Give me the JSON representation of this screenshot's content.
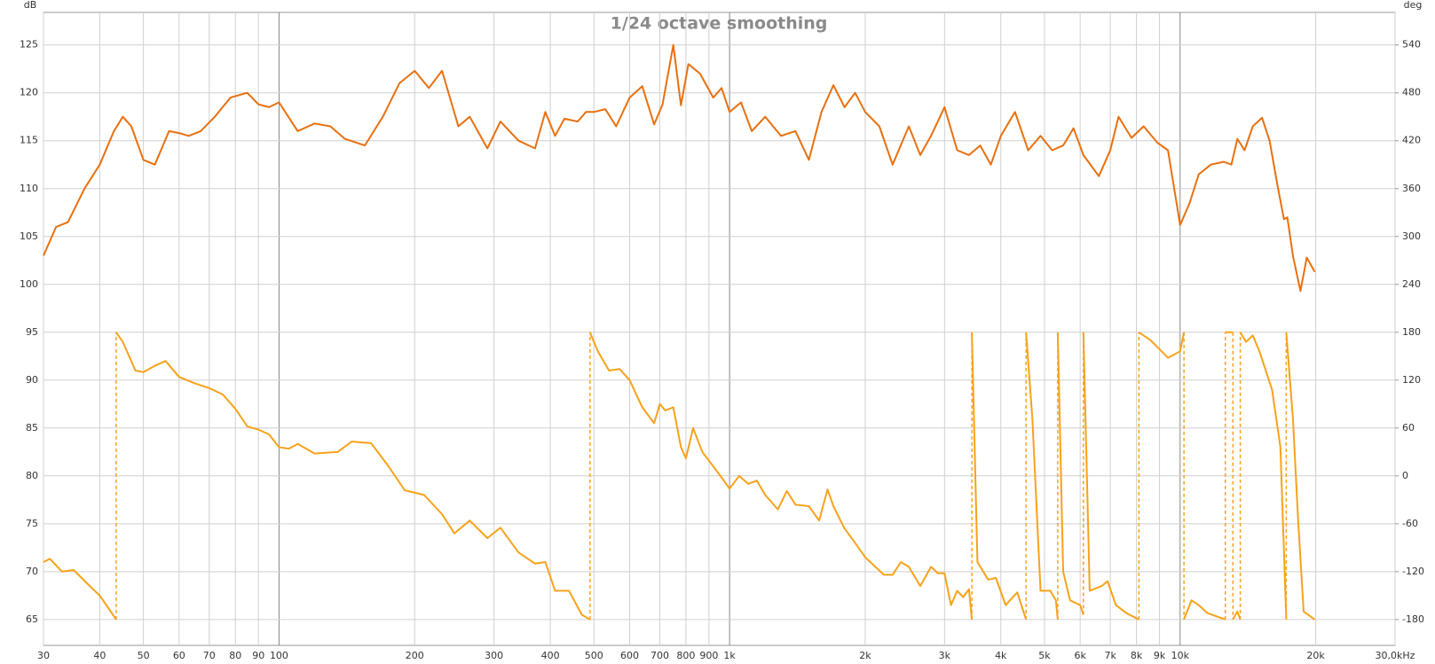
{
  "chart_data": {
    "type": "line",
    "title": "1/24 octave smoothing",
    "ylabel": "dB",
    "y2label": "deg",
    "xscale": "log",
    "grid": true,
    "xlim": [
      30,
      30000
    ],
    "xticks": [
      30,
      40,
      50,
      60,
      70,
      80,
      90,
      100,
      200,
      300,
      400,
      500,
      600,
      700,
      800,
      900,
      {
        "value": 1000,
        "label": "1k"
      },
      {
        "value": 2000,
        "label": "2k"
      },
      {
        "value": 3000,
        "label": "3k"
      },
      {
        "value": 4000,
        "label": "4k"
      },
      {
        "value": 5000,
        "label": "5k"
      },
      {
        "value": 6000,
        "label": "6k"
      },
      {
        "value": 7000,
        "label": "7k"
      },
      {
        "value": 8000,
        "label": "8k"
      },
      {
        "value": 9000,
        "label": "9k"
      },
      {
        "value": 10000,
        "label": "10k"
      },
      {
        "value": 20000,
        "label": "20k"
      },
      {
        "value": 30000,
        "label": "30,0kHz"
      }
    ],
    "ylim": [
      62.3,
      128.4
    ],
    "yticks": [
      65,
      70,
      75,
      80,
      85,
      90,
      95,
      100,
      105,
      110,
      115,
      120,
      125
    ],
    "y2lim": [
      -212.4,
      580.8
    ],
    "y2ticks": [
      -180,
      -120,
      -60,
      0,
      60,
      120,
      180,
      240,
      300,
      360,
      420,
      480,
      540
    ],
    "series": [
      {
        "color": "#e8700f",
        "x": [
          30,
          32,
          34,
          37,
          40,
          43,
          45,
          47,
          50,
          53,
          57,
          60,
          63,
          67,
          72,
          78,
          85,
          90,
          95,
          100,
          110,
          120,
          130,
          140,
          155,
          170,
          185,
          200,
          215,
          230,
          250,
          265,
          290,
          310,
          340,
          370,
          390,
          410,
          430,
          460,
          480,
          500,
          530,
          560,
          600,
          640,
          680,
          710,
          750,
          780,
          810,
          860,
          920,
          960,
          1000,
          1060,
          1120,
          1200,
          1300,
          1400,
          1500,
          1600,
          1700,
          1800,
          1900,
          2000,
          2150,
          2300,
          2500,
          2650,
          2800,
          3000,
          3200,
          3400,
          3600,
          3800,
          4000,
          4300,
          4600,
          4900,
          5200,
          5500,
          5800,
          6100,
          6600,
          7000,
          7300,
          7800,
          8300,
          8900,
          9400,
          10000,
          10500,
          11000,
          11700,
          12500,
          13000,
          13400,
          13900,
          14500,
          15200,
          15800,
          16500,
          17000,
          17300,
          17800,
          18500,
          19100,
          19900
        ],
        "values": [
          103,
          106,
          106.5,
          110,
          112.5,
          116,
          117.5,
          116.5,
          113,
          112.5,
          116,
          115.8,
          115.5,
          116,
          117.5,
          119.5,
          120,
          118.8,
          118.5,
          119,
          116,
          116.8,
          116.5,
          115.2,
          114.5,
          117.5,
          121,
          122.3,
          120.5,
          122.3,
          116.5,
          117.5,
          114.2,
          117,
          115,
          114.2,
          118,
          115.5,
          117.3,
          117,
          118,
          118,
          118.3,
          116.5,
          119.5,
          120.7,
          116.7,
          118.8,
          125,
          118.7,
          123,
          122,
          119.5,
          120.5,
          118,
          119,
          116,
          117.5,
          115.5,
          116,
          113,
          118,
          120.8,
          118.5,
          120,
          118,
          116.5,
          112.5,
          116.5,
          113.5,
          115.5,
          118.5,
          114,
          113.5,
          114.5,
          112.5,
          115.5,
          118,
          114,
          115.5,
          114,
          114.5,
          116.3,
          113.5,
          111.3,
          114,
          117.5,
          115.3,
          116.5,
          114.8,
          114,
          106.2,
          108.5,
          111.5,
          112.5,
          112.8,
          112.5,
          115.2,
          114,
          116.5,
          117.4,
          115,
          110,
          106.8,
          107,
          103,
          99.3,
          102.8,
          101.3
        ]
      },
      {
        "color": "#f7a21b",
        "axis": "y2",
        "x": [
          30,
          31,
          33,
          35,
          38,
          40,
          43.5,
          43.5,
          43.5,
          45,
          48,
          50,
          53,
          56,
          60,
          65,
          70,
          75,
          80,
          85,
          90,
          95,
          100,
          105,
          110,
          120,
          135,
          145,
          160,
          175,
          190,
          210,
          230,
          245,
          265,
          290,
          310,
          340,
          370,
          390,
          410,
          440,
          470,
          490,
          490,
          490,
          510,
          540,
          570,
          600,
          640,
          680,
          700,
          720,
          750,
          780,
          800,
          830,
          870,
          920,
          960,
          1000,
          1050,
          1100,
          1150,
          1200,
          1280,
          1340,
          1400,
          1500,
          1580,
          1650,
          1700,
          1800,
          1900,
          2000,
          2200,
          2300,
          2400,
          2500,
          2650,
          2800,
          2900,
          3000,
          3100,
          3200,
          3300,
          3400,
          3450,
          3450,
          3450,
          3550,
          3750,
          3900,
          4100,
          4350,
          4550,
          4550,
          4550,
          4700,
          4900,
          5150,
          5300,
          5350,
          5350,
          5350,
          5500,
          5700,
          6000,
          6100,
          6100,
          6100,
          6300,
          6700,
          6900,
          7200,
          7600,
          8100,
          8100,
          8100,
          8600,
          9400,
          10000,
          10200,
          10200,
          10200,
          10600,
          11000,
          11500,
          12600,
          12600,
          12600,
          13100,
          13100,
          13100,
          13400,
          13600,
          13600,
          13600,
          14000,
          14500,
          15000,
          16000,
          16700,
          17200,
          17200,
          17200,
          17800,
          18300,
          18800,
          19900
        ],
        "values": [
          -108,
          -104,
          -120,
          -118,
          -138,
          -150,
          -180,
          null,
          180,
          168,
          132,
          130,
          138,
          144,
          124,
          116,
          110,
          102,
          84,
          62,
          58,
          52,
          36,
          34,
          40,
          28,
          30,
          43,
          41,
          12,
          -18,
          -24,
          -48,
          -72,
          -56,
          -78,
          -65,
          -96,
          -110,
          -108,
          -144,
          -144,
          -174,
          -180,
          null,
          180,
          156,
          132,
          134,
          120,
          86,
          66,
          90,
          82,
          86,
          36,
          22,
          60,
          30,
          12,
          -2,
          -16,
          0,
          -10,
          -6,
          -24,
          -42,
          -19,
          -36,
          -38,
          -56,
          -17,
          -38,
          -66,
          -84,
          -102,
          -124,
          -124,
          -108,
          -114,
          -138,
          -114,
          -122,
          -122,
          -162,
          -144,
          -152,
          -142,
          -180,
          null,
          180,
          -108,
          -130,
          -128,
          -162,
          -146,
          -180,
          null,
          180,
          72,
          -144,
          -144,
          -156,
          -180,
          null,
          180,
          -120,
          -156,
          -162,
          -174,
          null,
          180,
          -144,
          -138,
          -132,
          -162,
          -172,
          -180,
          null,
          180,
          170,
          148,
          156,
          180,
          null,
          -180,
          -156,
          -162,
          -172,
          -180,
          null,
          180,
          180,
          null,
          -180,
          -170,
          -180,
          null,
          180,
          168,
          176,
          156,
          108,
          36,
          -180,
          null,
          180,
          72,
          -60,
          -170,
          -180
        ]
      }
    ]
  }
}
